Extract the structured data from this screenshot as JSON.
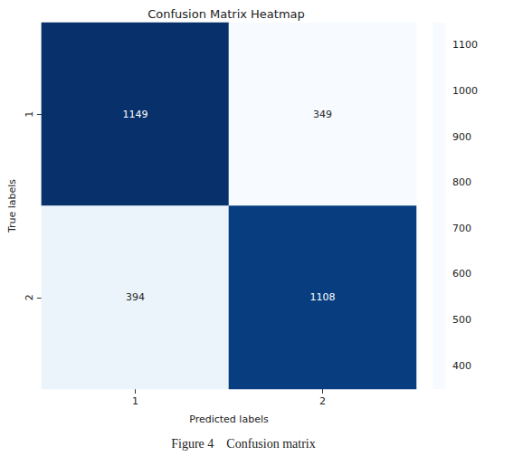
{
  "chart_data": {
    "type": "heatmap",
    "title": "Confusion Matrix Heatmap",
    "x_label": "Predicted labels",
    "y_label": "True labels",
    "x_categories": [
      "1",
      "2"
    ],
    "y_categories": [
      "1",
      "2"
    ],
    "cells": [
      [
        1149,
        349
      ],
      [
        394,
        1108
      ]
    ],
    "data_labels": true,
    "colorbar_range": [
      349,
      1149
    ],
    "colorbar_ticks": [
      400,
      500,
      600,
      700,
      800,
      900,
      1000,
      1100
    ],
    "caption": "Figure 4    Confusion matrix"
  }
}
